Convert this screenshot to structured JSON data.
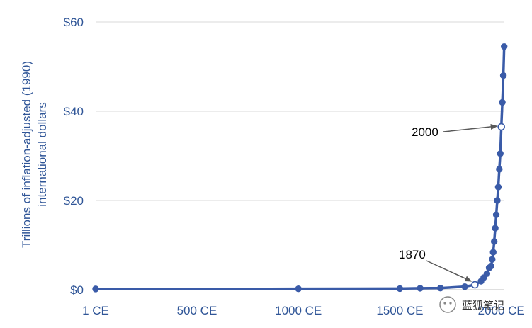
{
  "chart_data": {
    "type": "line",
    "title": "",
    "ylabel_line1": "Trillions of inflation-adjusted (1990)",
    "ylabel_line2": "international dollars",
    "xlabel": "",
    "x_tick_labels": [
      {
        "x": 1,
        "label": "1 CE"
      },
      {
        "x": 500,
        "label": "500 CE"
      },
      {
        "x": 1000,
        "label": "1000 CE"
      },
      {
        "x": 1500,
        "label": "1500 CE"
      },
      {
        "x": 2000,
        "label": "2000 CE"
      }
    ],
    "y_tick_labels": [
      {
        "y": 0,
        "label": "$0"
      },
      {
        "y": 20,
        "label": "$20"
      },
      {
        "y": 40,
        "label": "$40"
      },
      {
        "y": 60,
        "label": "$60"
      }
    ],
    "xlim": [
      1,
      2015
    ],
    "ylim": [
      0,
      60
    ],
    "grid": true,
    "series_color": "#3a5ba8",
    "series": [
      {
        "name": "",
        "points": [
          [
            1,
            0.18
          ],
          [
            1000,
            0.21
          ],
          [
            1500,
            0.25
          ],
          [
            1600,
            0.33
          ],
          [
            1700,
            0.37
          ],
          [
            1820,
            0.69
          ],
          [
            1870,
            1.1
          ],
          [
            1900,
            1.9
          ],
          [
            1913,
            2.7
          ],
          [
            1929,
            3.6
          ],
          [
            1940,
            4.9
          ],
          [
            1950,
            5.3
          ],
          [
            1955,
            6.8
          ],
          [
            1960,
            8.4
          ],
          [
            1965,
            10.8
          ],
          [
            1970,
            13.8
          ],
          [
            1975,
            16.8
          ],
          [
            1980,
            20.0
          ],
          [
            1985,
            23.0
          ],
          [
            1990,
            27.0
          ],
          [
            1995,
            30.5
          ],
          [
            2000,
            36.5
          ],
          [
            2005,
            42.0
          ],
          [
            2010,
            48.0
          ],
          [
            2014,
            54.5
          ]
        ]
      }
    ],
    "annotations": [
      {
        "label": "2000",
        "x": 2000,
        "y": 36.5
      },
      {
        "label": "1870",
        "x": 1870,
        "y": 1.1
      }
    ]
  },
  "watermark": {
    "text": "蓝狐笔记"
  }
}
